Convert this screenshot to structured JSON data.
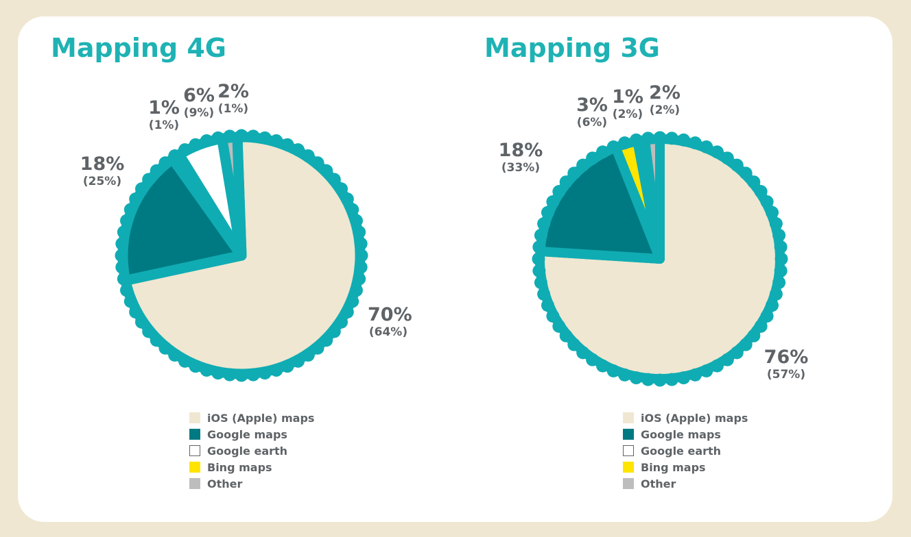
{
  "colors": {
    "ring": "#10acb3",
    "ios": "#efe7d1",
    "google_maps": "#007a82",
    "google_earth": "#ffffff",
    "bing": "#ffe400",
    "other": "#bdbdbd",
    "title": "#1fb2b4",
    "text": "#5e6367"
  },
  "chart_data": [
    {
      "type": "pie",
      "title": "Mapping 4G",
      "slices": [
        {
          "name": "iOS (Apple) maps",
          "value": 70,
          "label": "70%",
          "sub_label": "(64%)",
          "color": "#efe7d1"
        },
        {
          "name": "Google maps",
          "value": 18,
          "label": "18%",
          "sub_label": "(25%)",
          "color": "#007a82"
        },
        {
          "name": "Bing maps",
          "value": 1,
          "label": "1%",
          "sub_label": "(1%)",
          "color": "#ffe400"
        },
        {
          "name": "Google earth",
          "value": 6,
          "label": "6%",
          "sub_label": "(9%)",
          "color": "#ffffff"
        },
        {
          "name": "Other",
          "value": 2,
          "label": "2%",
          "sub_label": "(1%)",
          "color": "#bdbdbd"
        }
      ],
      "legend": [
        "iOS (Apple) maps",
        "Google maps",
        "Google earth",
        "Bing maps",
        "Other"
      ]
    },
    {
      "type": "pie",
      "title": "Mapping 3G",
      "slices": [
        {
          "name": "iOS (Apple) maps",
          "value": 76,
          "label": "76%",
          "sub_label": "(57%)",
          "color": "#efe7d1"
        },
        {
          "name": "Google maps",
          "value": 18,
          "label": "18%",
          "sub_label": "(33%)",
          "color": "#007a82"
        },
        {
          "name": "Bing maps",
          "value": 3,
          "label": "3%",
          "sub_label": "(6%)",
          "color": "#ffe400"
        },
        {
          "name": "Google earth",
          "value": 1,
          "label": "1%",
          "sub_label": "(2%)",
          "color": "#ffffff"
        },
        {
          "name": "Other",
          "value": 2,
          "label": "2%",
          "sub_label": "(2%)",
          "color": "#bdbdbd"
        }
      ],
      "legend": [
        "iOS (Apple) maps",
        "Google maps",
        "Google earth",
        "Bing maps",
        "Other"
      ]
    }
  ]
}
